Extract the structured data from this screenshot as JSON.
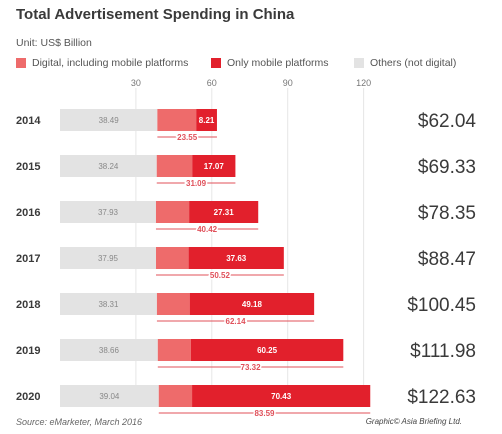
{
  "chart_data": {
    "type": "bar",
    "title": "Total Advertisement Spending in China",
    "unit": "Unit: US$ Billion",
    "xticks": [
      30,
      60,
      90,
      120
    ],
    "xlim": [
      0,
      126
    ],
    "categories": [
      "2014",
      "2015",
      "2016",
      "2017",
      "2018",
      "2019",
      "2020"
    ],
    "series": [
      {
        "name": "Others (not digital)",
        "values": [
          38.49,
          38.24,
          37.93,
          37.95,
          38.31,
          38.66,
          39.04
        ],
        "labels": [
          "38.49",
          "38.24",
          "37.93",
          "37.95",
          "38.31",
          "38.66",
          "39.04"
        ],
        "color": "#e3e3e3"
      },
      {
        "name": "Digital, including mobile platforms",
        "values": [
          15.34,
          14.02,
          13.11,
          12.89,
          12.96,
          13.07,
          13.16
        ],
        "color": "#ee6b6b"
      },
      {
        "name": "Only mobile platforms",
        "values": [
          8.21,
          17.07,
          27.31,
          37.63,
          49.18,
          60.25,
          70.43
        ],
        "labels": [
          "8.21",
          "17.07",
          "27.31",
          "37.63",
          "49.18",
          "60.25",
          "70.43"
        ],
        "color": "#e2202c"
      }
    ],
    "digital_totals": [
      "23.55",
      "31.09",
      "40.42",
      "50.52",
      "62.14",
      "73.32",
      "83.59"
    ],
    "totals": [
      "$62.04",
      "$69.33",
      "$78.35",
      "$88.47",
      "$100.45",
      "$111.98",
      "$122.63"
    ],
    "legend_position": "top",
    "grid": true
  },
  "source": "Source: eMarketer, March 2016",
  "credit": "Graphic© Asia Briefing Ltd."
}
